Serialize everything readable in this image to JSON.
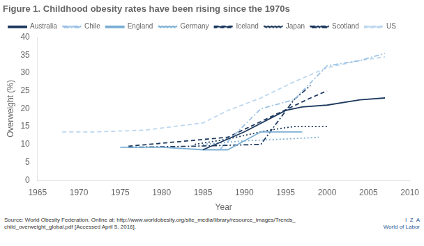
{
  "chart_data": {
    "type": "line",
    "title": "Figure 1. Childhood obesity rates have been rising since the 1970s",
    "xlabel": "Year",
    "ylabel": "Overweight (%)",
    "xlim": [
      1965,
      2010
    ],
    "ylim": [
      0,
      40
    ],
    "xticks": [
      1965,
      1970,
      1975,
      1980,
      1985,
      1990,
      1995,
      2000,
      2005,
      2010
    ],
    "yticks": [
      0,
      5,
      10,
      15,
      20,
      25,
      30,
      35,
      40
    ],
    "grid": false,
    "legend": "top",
    "annotations": [
      "Source: World Obesity Federation. Online at: http://www.worldobesity.org/site_media/library/resource_images/Trends_\nchild_overweight_global.pdf [Accessed April 5, 2016].",
      "I  Z  A\nWorld of Labor"
    ],
    "series": [
      {
        "name": "Australia",
        "color": "#1e3a5f",
        "line_style": "solid",
        "x": [
          1985,
          1987,
          1990,
          1995,
          1997,
          2000,
          2004,
          2007
        ],
        "values": [
          8.5,
          10.5,
          13.5,
          19.5,
          20.5,
          21.0,
          22.5,
          23.0
        ]
      },
      {
        "name": "Chile",
        "color": "#9dc3e6",
        "line_style": "dashdot",
        "x": [
          1987,
          1992,
          1996,
          2000,
          2004,
          2007
        ],
        "values": [
          8.5,
          20.0,
          22.5,
          32.0,
          33.5,
          35.5
        ]
      },
      {
        "name": "England",
        "color": "#7bafd4",
        "line_style": "solid",
        "x": [
          1975,
          1980,
          1985,
          1988,
          1992,
          1997
        ],
        "values": [
          9.2,
          9.2,
          8.5,
          8.5,
          13.5,
          13.5
        ]
      },
      {
        "name": "Germany",
        "color": "#7bafd4",
        "line_style": "dotted",
        "x": [
          1985,
          1990,
          1995,
          1999
        ],
        "values": [
          10.0,
          11.0,
          11.5,
          12.0
        ]
      },
      {
        "name": "Iceland",
        "color": "#1e3a5f",
        "line_style": "dashed",
        "x": [
          1976,
          1988,
          1998,
          2000
        ],
        "values": [
          9.5,
          12.0,
          23.0,
          25.0
        ]
      },
      {
        "name": "Japan",
        "color": "#1e3a5f",
        "line_style": "dotted",
        "x": [
          1984,
          1988,
          1993,
          1996,
          2000
        ],
        "values": [
          10.0,
          11.5,
          14.0,
          15.0,
          15.0
        ]
      },
      {
        "name": "Scotland",
        "color": "#1e3a5f",
        "line_style": "dashdot",
        "x": [
          1976,
          1984,
          1992,
          1996,
          1998
        ],
        "values": [
          9.2,
          9.5,
          10.0,
          22.5,
          26.5
        ]
      },
      {
        "name": "US",
        "color": "#bdd7ee",
        "line_style": "dashed",
        "x": [
          1968,
          1972,
          1978,
          1985,
          1988,
          1992,
          1996,
          2000,
          2004,
          2007
        ],
        "values": [
          13.5,
          13.5,
          14.0,
          16.0,
          19.5,
          23.0,
          27.5,
          31.5,
          33.5,
          34.5
        ]
      }
    ]
  }
}
